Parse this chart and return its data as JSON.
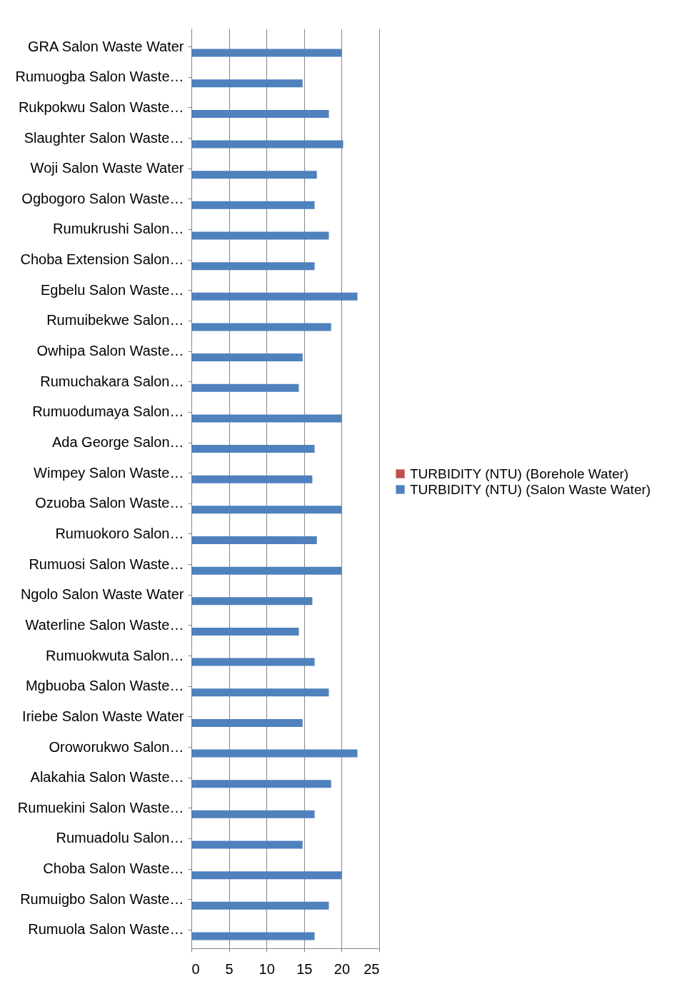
{
  "chart_data": {
    "type": "bar",
    "orientation": "horizontal",
    "categories": [
      "GRA Salon Waste Water",
      "Rumuogba Salon Waste…",
      "Rukpokwu Salon Waste…",
      "Slaughter Salon Waste…",
      "Woji Salon Waste Water",
      "Ogbogoro Salon Waste…",
      "Rumukrushi Salon…",
      "Choba Extension Salon…",
      "Egbelu Salon Waste…",
      "Rumuibekwe Salon…",
      "Owhipa Salon Waste…",
      "Rumuchakara Salon…",
      "Rumuodumaya Salon…",
      "Ada George Salon…",
      "Wimpey Salon Waste…",
      "Ozuoba Salon Waste…",
      "Rumuokoro Salon…",
      "Rumuosi Salon Waste…",
      "Ngolo Salon Waste Water",
      "Waterline Salon Waste…",
      "Rumuokwuta Salon…",
      "Mgbuoba Salon Waste…",
      "Iriebe Salon Waste Water",
      "Oroworukwo Salon…",
      "Alakahia Salon Waste…",
      "Rumuekini Salon Waste…",
      "Rumuadolu Salon…",
      "Choba Salon Waste…",
      "Rumuigbo Salon Waste…",
      "Rumuola Salon Waste…"
    ],
    "series": [
      {
        "name": "TURBIDITY (NTU) (Borehole Water)",
        "color": "#c0504d",
        "values": [
          0,
          0,
          0,
          0,
          0,
          0,
          0,
          0,
          0,
          0,
          0,
          0,
          0,
          0,
          0,
          0,
          0,
          0,
          0,
          0,
          0,
          0,
          0,
          0,
          0,
          0,
          0,
          0,
          0,
          0
        ]
      },
      {
        "name": "TURBIDITY (NTU) (Salon Waste Water)",
        "color": "#4f81bd",
        "values": [
          20,
          14.8,
          18.3,
          20.2,
          16.7,
          16.4,
          18.3,
          16.4,
          22.1,
          18.6,
          14.8,
          14.3,
          20,
          16.4,
          16.1,
          20,
          16.7,
          20,
          16.1,
          14.3,
          16.4,
          18.3,
          14.8,
          22.1,
          18.6,
          16.4,
          14.8,
          20,
          18.3,
          16.4
        ]
      }
    ],
    "xlim": [
      0,
      25
    ],
    "xticks": [
      0,
      5,
      10,
      15,
      20,
      25
    ],
    "grid": "x",
    "legend": "right"
  }
}
